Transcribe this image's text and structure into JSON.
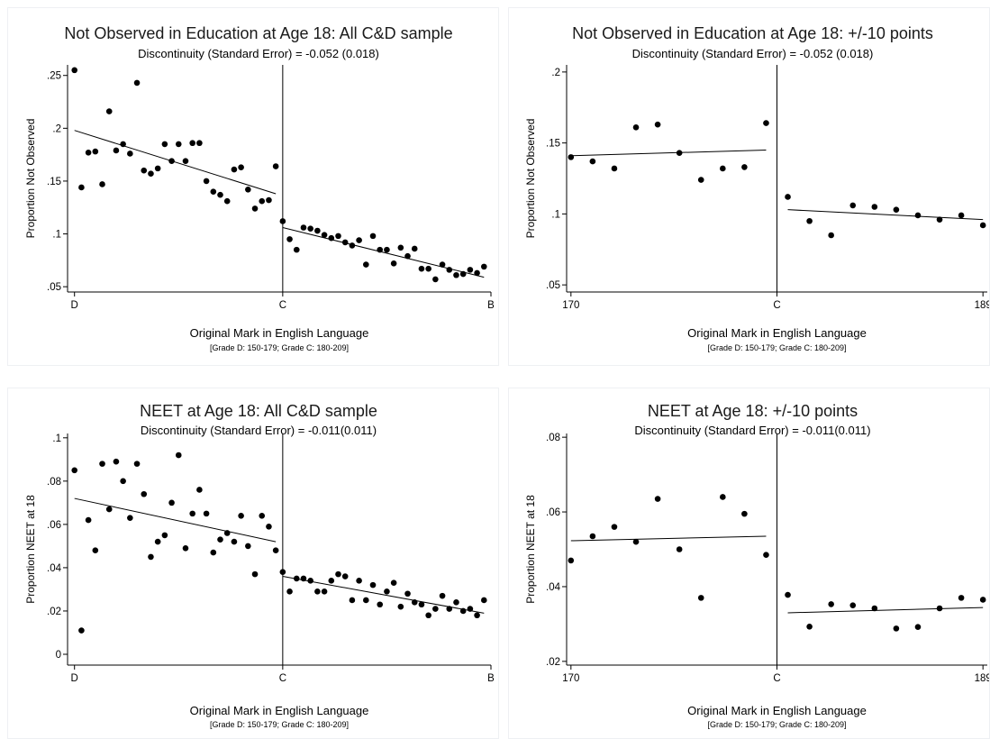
{
  "chart_data": [
    {
      "type": "scatter",
      "title": "Not Observed in Education at Age 18: All C&D sample",
      "subtitle": "Discontinuity (Standard Error) = -0.052 (0.018)",
      "xlabel": "Original Mark in English Language",
      "note": "[Grade D: 150-179; Grade C: 180-209]",
      "ylabel": "Proportion Not Observed",
      "xlim": [
        149,
        210
      ],
      "ylim": [
        0.045,
        0.26
      ],
      "x_ticks": [
        {
          "value": 150,
          "label": "D"
        },
        {
          "value": 180,
          "label": "C"
        },
        {
          "value": 210,
          "label": "B"
        }
      ],
      "y_ticks": [
        {
          "value": 0.25,
          "label": ".25"
        },
        {
          "value": 0.2,
          "label": ".2"
        },
        {
          "value": 0.15,
          "label": ".15"
        },
        {
          "value": 0.1,
          "label": ".1"
        },
        {
          "value": 0.05,
          "label": ".05"
        }
      ],
      "cutoff": 180,
      "x": [
        150,
        151,
        152,
        153,
        154,
        155,
        156,
        157,
        158,
        159,
        160,
        161,
        162,
        163,
        164,
        165,
        166,
        167,
        168,
        169,
        170,
        171,
        172,
        173,
        174,
        175,
        176,
        177,
        178,
        179,
        180,
        181,
        182,
        183,
        184,
        185,
        186,
        187,
        188,
        189,
        190,
        191,
        192,
        193,
        194,
        195,
        196,
        197,
        198,
        199,
        200,
        201,
        202,
        203,
        204,
        205,
        206,
        207,
        208,
        209
      ],
      "y": [
        0.255,
        0.144,
        0.177,
        0.178,
        0.147,
        0.216,
        0.179,
        0.185,
        0.176,
        0.243,
        0.16,
        0.157,
        0.162,
        0.185,
        0.169,
        0.185,
        0.169,
        0.186,
        0.186,
        0.15,
        0.14,
        0.137,
        0.131,
        0.161,
        0.163,
        0.142,
        0.124,
        0.131,
        0.132,
        0.164,
        0.112,
        0.095,
        0.085,
        0.106,
        0.105,
        0.103,
        0.099,
        0.096,
        0.098,
        0.092,
        0.089,
        0.094,
        0.071,
        0.098,
        0.085,
        0.085,
        0.072,
        0.087,
        0.079,
        0.086,
        0.067,
        0.067,
        0.057,
        0.071,
        0.066,
        0.061,
        0.062,
        0.066,
        0.063,
        0.069
      ],
      "fit_left": {
        "x": [
          150,
          179
        ],
        "y": [
          0.198,
          0.138
        ]
      },
      "fit_right": {
        "x": [
          180,
          209
        ],
        "y": [
          0.106,
          0.059
        ]
      }
    },
    {
      "type": "scatter",
      "title": "Not Observed in Education at Age 18: +/-10 points",
      "subtitle": "Discontinuity (Standard Error) = -0.052 (0.018)",
      "xlabel": "Original Mark in English Language",
      "note": "[Grade D: 150-179; Grade C: 180-209]",
      "ylabel": "Proportion Not Observed",
      "xlim": [
        169.8,
        189.2
      ],
      "ylim": [
        0.045,
        0.205
      ],
      "x_ticks": [
        {
          "value": 170,
          "label": "170"
        },
        {
          "value": 179.5,
          "label": "C"
        },
        {
          "value": 189,
          "label": "189"
        }
      ],
      "y_ticks": [
        {
          "value": 0.2,
          "label": ".2"
        },
        {
          "value": 0.15,
          "label": ".15"
        },
        {
          "value": 0.1,
          "label": ".1"
        },
        {
          "value": 0.05,
          "label": ".05"
        }
      ],
      "cutoff": 179.5,
      "x": [
        170,
        171,
        172,
        173,
        174,
        175,
        176,
        177,
        178,
        179,
        180,
        181,
        182,
        183,
        184,
        185,
        186,
        187,
        188,
        189
      ],
      "y": [
        0.14,
        0.137,
        0.132,
        0.161,
        0.163,
        0.143,
        0.124,
        0.132,
        0.133,
        0.164,
        0.112,
        0.095,
        0.085,
        0.106,
        0.105,
        0.103,
        0.099,
        0.096,
        0.099,
        0.092
      ],
      "fit_left": {
        "x": [
          170,
          179
        ],
        "y": [
          0.141,
          0.145
        ]
      },
      "fit_right": {
        "x": [
          180,
          189
        ],
        "y": [
          0.103,
          0.096
        ]
      }
    },
    {
      "type": "scatter",
      "title": "NEET at Age 18: All C&D sample",
      "subtitle": "Discontinuity (Standard Error) = -0.011(0.011)",
      "xlabel": "Original Mark in English Language",
      "note": "[Grade D: 150-179; Grade C: 180-209]",
      "ylabel": "Proportion NEET at 18",
      "xlim": [
        149,
        210
      ],
      "ylim": [
        -0.005,
        0.102
      ],
      "x_ticks": [
        {
          "value": 150,
          "label": "D"
        },
        {
          "value": 180,
          "label": "C"
        },
        {
          "value": 210,
          "label": "B"
        }
      ],
      "y_ticks": [
        {
          "value": 0.1,
          "label": ".1"
        },
        {
          "value": 0.08,
          "label": ".08"
        },
        {
          "value": 0.06,
          "label": ".06"
        },
        {
          "value": 0.04,
          "label": ".04"
        },
        {
          "value": 0.02,
          "label": ".02"
        },
        {
          "value": 0,
          "label": "0"
        }
      ],
      "cutoff": 180,
      "x": [
        150,
        151,
        152,
        153,
        154,
        155,
        156,
        157,
        158,
        159,
        160,
        161,
        162,
        163,
        164,
        165,
        166,
        167,
        168,
        169,
        170,
        171,
        172,
        173,
        174,
        175,
        176,
        177,
        178,
        179,
        180,
        181,
        182,
        183,
        184,
        185,
        186,
        187,
        188,
        189,
        190,
        191,
        192,
        193,
        194,
        195,
        196,
        197,
        198,
        199,
        200,
        201,
        202,
        203,
        204,
        205,
        206,
        207,
        208,
        209
      ],
      "y": [
        0.085,
        0.011,
        0.062,
        0.048,
        0.088,
        0.067,
        0.089,
        0.08,
        0.063,
        0.088,
        0.074,
        0.045,
        0.052,
        0.055,
        0.07,
        0.092,
        0.049,
        0.065,
        0.076,
        0.065,
        0.047,
        0.053,
        0.056,
        0.052,
        0.064,
        0.05,
        0.037,
        0.064,
        0.059,
        0.048,
        0.038,
        0.029,
        0.035,
        0.035,
        0.034,
        0.029,
        0.029,
        0.034,
        0.037,
        0.036,
        0.025,
        0.034,
        0.025,
        0.032,
        0.023,
        0.029,
        0.033,
        0.022,
        0.028,
        0.024,
        0.023,
        0.018,
        0.021,
        0.027,
        0.021,
        0.024,
        0.02,
        0.021,
        0.018,
        0.025
      ],
      "fit_left": {
        "x": [
          150,
          179
        ],
        "y": [
          0.072,
          0.052
        ]
      },
      "fit_right": {
        "x": [
          180,
          209
        ],
        "y": [
          0.036,
          0.019
        ]
      }
    },
    {
      "type": "scatter",
      "title": "NEET at Age 18: +/-10 points",
      "subtitle": "Discontinuity (Standard Error) = -0.011(0.011)",
      "xlabel": "Original Mark in English Language",
      "note": "[Grade D: 150-179; Grade C: 180-209]",
      "ylabel": "Proportion NEET at 18",
      "xlim": [
        169.8,
        189.2
      ],
      "ylim": [
        0.019,
        0.081
      ],
      "x_ticks": [
        {
          "value": 170,
          "label": "170"
        },
        {
          "value": 179.5,
          "label": "C"
        },
        {
          "value": 189,
          "label": "189"
        }
      ],
      "y_ticks": [
        {
          "value": 0.08,
          "label": ".08"
        },
        {
          "value": 0.06,
          "label": ".06"
        },
        {
          "value": 0.04,
          "label": ".04"
        },
        {
          "value": 0.02,
          "label": ".02"
        }
      ],
      "cutoff": 179.5,
      "x": [
        170,
        171,
        172,
        173,
        174,
        175,
        176,
        177,
        178,
        179,
        180,
        181,
        182,
        183,
        184,
        185,
        186,
        187,
        188,
        189
      ],
      "y": [
        0.047,
        0.0535,
        0.056,
        0.052,
        0.0635,
        0.05,
        0.037,
        0.064,
        0.0595,
        0.0485,
        0.0378,
        0.0293,
        0.0353,
        0.035,
        0.0342,
        0.0288,
        0.0292,
        0.0342,
        0.037,
        0.0365
      ],
      "fit_left": {
        "x": [
          170,
          179
        ],
        "y": [
          0.0523,
          0.0535
        ]
      },
      "fit_right": {
        "x": [
          180,
          189
        ],
        "y": [
          0.033,
          0.0344
        ]
      }
    }
  ]
}
